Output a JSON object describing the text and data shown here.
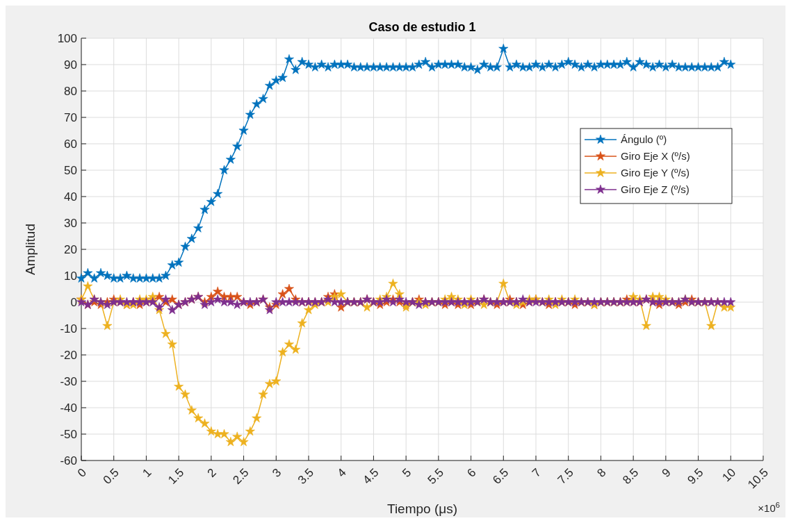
{
  "chart_data": {
    "type": "line",
    "title": "Caso de estudio 1",
    "xlabel": "Tiempo  (μs)",
    "ylabel": "Amplitud",
    "annotations": [
      "×10$^{6}$"
    ],
    "x": [
      0,
      0.1,
      0.2,
      0.3,
      0.4,
      0.5,
      0.6,
      0.7,
      0.8,
      0.9,
      1,
      1.1,
      1.2,
      1.3,
      1.4,
      1.5,
      1.6,
      1.7,
      1.8,
      1.9,
      2,
      2.1,
      2.2,
      2.3,
      2.4,
      2.5,
      2.6,
      2.7,
      2.8,
      2.9,
      3,
      3.1,
      3.2,
      3.3,
      3.4,
      3.5,
      3.6,
      3.7,
      3.8,
      3.9,
      4,
      4.1,
      4.2,
      4.3,
      4.4,
      4.5,
      4.6,
      4.7,
      4.8,
      4.9,
      5,
      5.1,
      5.2,
      5.3,
      5.4,
      5.5,
      5.6,
      5.7,
      5.8,
      5.9,
      6,
      6.1,
      6.2,
      6.3,
      6.4,
      6.5,
      6.6,
      6.7,
      6.8,
      6.9,
      7,
      7.1,
      7.2,
      7.3,
      7.4,
      7.5,
      7.6,
      7.7,
      7.8,
      7.9,
      8,
      8.1,
      8.2,
      8.3,
      8.4,
      8.5,
      8.6,
      8.7,
      8.8,
      8.9,
      9,
      9.1,
      9.2,
      9.3,
      9.4,
      9.5,
      9.6,
      9.7,
      9.8,
      9.9,
      10
    ],
    "series": [
      {
        "name": "Ángulo (º)",
        "color": "#0072bd",
        "values": [
          9,
          11,
          9,
          11,
          10,
          9,
          9,
          10,
          9,
          9,
          9,
          9,
          9,
          10,
          14,
          15,
          21,
          24,
          28,
          35,
          38,
          41,
          50,
          54,
          59,
          65,
          71,
          75,
          77,
          82,
          84,
          85,
          92,
          88,
          91,
          90,
          89,
          90,
          89,
          90,
          90,
          90,
          89,
          89,
          89,
          89,
          89,
          89,
          89,
          89,
          89,
          89,
          90,
          91,
          89,
          90,
          90,
          90,
          90,
          89,
          89,
          88,
          90,
          89,
          89,
          96,
          89,
          90,
          89,
          89,
          90,
          89,
          90,
          89,
          90,
          91,
          90,
          89,
          90,
          89,
          90,
          90,
          90,
          90,
          91,
          89,
          91,
          90,
          89,
          90,
          89,
          90,
          89,
          89,
          89,
          89,
          89,
          89,
          89,
          91,
          90
        ]
      },
      {
        "name": "Giro Eje X (º/s)",
        "color": "#d95319",
        "values": [
          1,
          -1,
          0,
          -1,
          0,
          1,
          0,
          -1,
          0,
          -1,
          0,
          1,
          2,
          0,
          1,
          -1,
          0,
          1,
          2,
          0,
          2,
          4,
          2,
          2,
          2,
          0,
          -1,
          0,
          1,
          -2,
          -1,
          3,
          5,
          1,
          0,
          0,
          0,
          0,
          2,
          3,
          -2,
          0,
          0,
          0,
          1,
          0,
          -1,
          0,
          1,
          0,
          -1,
          0,
          1,
          0,
          0,
          0,
          -1,
          0,
          -1,
          0,
          -1,
          0,
          1,
          0,
          -1,
          0,
          1,
          0,
          -1,
          0,
          1,
          0,
          -1,
          0,
          0,
          0,
          -1,
          0,
          0,
          -1,
          0,
          0,
          0,
          0,
          1,
          0,
          0,
          1,
          0,
          -1,
          0,
          0,
          -1,
          0,
          1,
          0,
          0,
          0,
          null,
          null,
          null
        ]
      },
      {
        "name": "Giro Eje Y (º/s)",
        "color": "#edb120",
        "values": [
          1,
          6,
          1,
          0,
          -9,
          0,
          1,
          -1,
          -1,
          1,
          1,
          2,
          -3,
          -12,
          -16,
          -32,
          -35,
          -41,
          -44,
          -46,
          -49,
          -50,
          -50,
          -53,
          -51,
          -53,
          -49,
          -44,
          -35,
          -31,
          -30,
          -19,
          -16,
          -18,
          -8,
          -3,
          -1,
          0,
          0,
          2,
          3,
          0,
          0,
          0,
          -2,
          0,
          1,
          2,
          7,
          3,
          -2,
          0,
          0,
          -1,
          0,
          0,
          1,
          2,
          1,
          -1,
          1,
          0,
          -1,
          0,
          0,
          7,
          0,
          -1,
          0,
          1,
          1,
          0,
          1,
          -1,
          1,
          0,
          1,
          0,
          0,
          -1,
          0,
          0,
          0,
          0,
          0,
          2,
          1,
          -9,
          2,
          2,
          1,
          0,
          0,
          1,
          0,
          0,
          0,
          -9,
          0,
          -2,
          -2
        ]
      },
      {
        "name": "Giro Eje Z (º/s)",
        "color": "#7e2f8e",
        "values": [
          0,
          -1,
          1,
          0,
          -1,
          0,
          0,
          0,
          0,
          0,
          0,
          0,
          -2,
          1,
          -3,
          -1,
          0,
          1,
          2,
          -1,
          0,
          1,
          0,
          0,
          -1,
          0,
          0,
          0,
          1,
          -3,
          0,
          0,
          0,
          0,
          0,
          0,
          0,
          0,
          1,
          0,
          0,
          0,
          0,
          0,
          1,
          0,
          0,
          1,
          0,
          1,
          0,
          0,
          -1,
          0,
          0,
          0,
          0,
          0,
          0,
          0,
          0,
          0,
          1,
          0,
          0,
          0,
          0,
          0,
          1,
          0,
          0,
          0,
          0,
          0,
          0,
          0,
          0,
          0,
          0,
          0,
          0,
          0,
          0,
          0,
          0,
          0,
          0,
          1,
          0,
          0,
          0,
          0,
          0,
          1,
          0,
          0,
          0,
          0,
          0,
          0,
          0
        ]
      }
    ],
    "xlim": [
      0,
      10.5
    ],
    "xticks": [
      0,
      0.5,
      1,
      1.5,
      2,
      2.5,
      3,
      3.5,
      4,
      4.5,
      5,
      5.5,
      6,
      6.5,
      7,
      7.5,
      8,
      8.5,
      9,
      9.5,
      10,
      10.5
    ],
    "ylim": [
      -60,
      100
    ],
    "yticks": [
      -60,
      -50,
      -40,
      -30,
      -20,
      -10,
      0,
      10,
      20,
      30,
      40,
      50,
      60,
      70,
      80,
      90,
      100
    ],
    "grid": true,
    "legend": "top right",
    "marker": "star",
    "line_style": "solid"
  }
}
